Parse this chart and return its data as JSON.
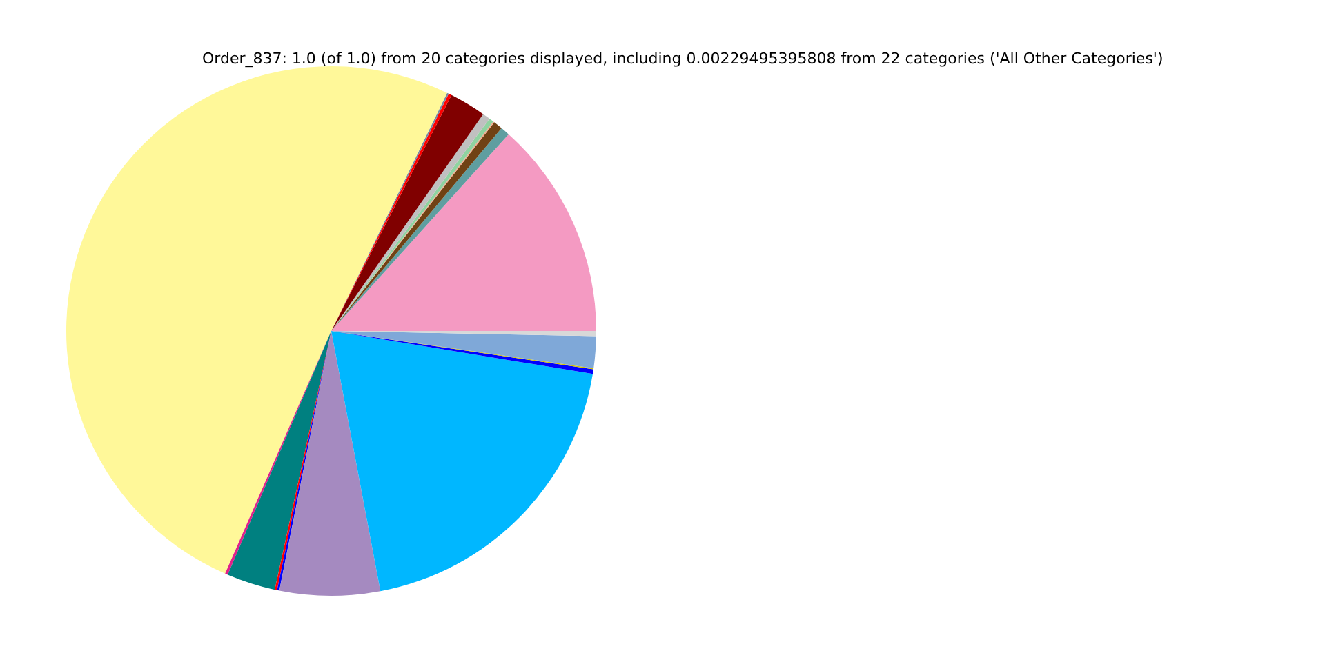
{
  "chart_data": {
    "type": "pie",
    "title": "Order_837: 1.0 (of 1.0) from 20 categories displayed, including 0.00229495395808 from 22 categories ('All Other Categories')",
    "categories": [
      null,
      null,
      null,
      null,
      null,
      null,
      null,
      null,
      null,
      null,
      null,
      null,
      null,
      null,
      null,
      null,
      null,
      null,
      null,
      null
    ],
    "values": [
      13.33,
      0.56,
      0.56,
      0.08,
      0.28,
      0.47,
      2.22,
      0.19,
      0.11,
      50.64,
      0.17,
      2.97,
      0.14,
      0.14,
      6.11,
      19.44,
      0.28,
      0.06,
      1.94,
      0.31
    ],
    "colors": [
      "#f49ac2",
      "#5f9ea0",
      "#704214",
      "#f4a98c",
      "#8fd3a0",
      "#c0c0c0",
      "#800000",
      "#ff0000",
      "#7a8aa0",
      "#fff899",
      "#e0218a",
      "#008080",
      "#ff0000",
      "#0000ff",
      "#a58ac0",
      "#00b7ff",
      "#0000ff",
      "#d4c000",
      "#7fa8d8",
      "#d8d8d8"
    ]
  }
}
